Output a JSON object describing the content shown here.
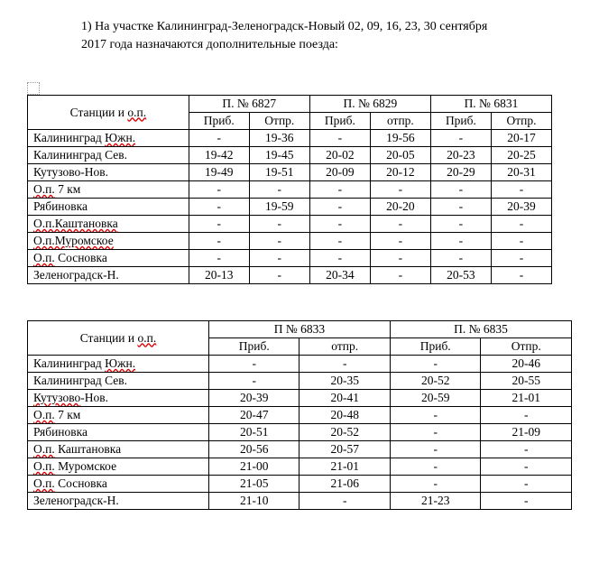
{
  "heading": {
    "number": "1)",
    "text_part1": "На участке Калининград-Зеленоградск-Новый 02, 09, 16, 23, 30 сентября",
    "text_part2": "2017 года назначаются дополнительные поезда:"
  },
  "table1": {
    "header_station": "Станции и ",
    "header_station_err": "о.п.",
    "trains": [
      {
        "label": "П. № 6827"
      },
      {
        "label": "П. № 6829"
      },
      {
        "label": "П. № 6831"
      }
    ],
    "sub": {
      "arr": "Приб.",
      "dep": "Отпр.",
      "dep_lc": "отпр."
    },
    "rows": [
      {
        "s": "Калининград ",
        "se": "Южн.",
        "c": [
          "-",
          "19-36",
          "-",
          "19-56",
          "-",
          "20-17"
        ]
      },
      {
        "s": "Калининград Сев.",
        "se": "",
        "c": [
          "19-42",
          "19-45",
          "20-02",
          "20-05",
          "20-23",
          "20-25"
        ]
      },
      {
        "s": "Кутузово-Нов.",
        "se": "",
        "c": [
          "19-49",
          "19-51",
          "20-09",
          "20-12",
          "20-29",
          "20-31"
        ]
      },
      {
        "s": "",
        "se": "О.п.",
        "st": " 7 км",
        "c": [
          "-",
          "-",
          "-",
          "-",
          "-",
          "-"
        ]
      },
      {
        "s": "Рябиновка",
        "se": "",
        "c": [
          "-",
          "19-59",
          "-",
          "20-20",
          "-",
          "20-39"
        ]
      },
      {
        "s": "",
        "se": "О.п.Каштановка",
        "c": [
          "-",
          "-",
          "-",
          "-",
          "-",
          "-"
        ]
      },
      {
        "s": "",
        "se": "О.п.Муромское",
        "c": [
          "-",
          "-",
          "-",
          "-",
          "-",
          "-"
        ]
      },
      {
        "s": "",
        "se": "О.п.",
        "st": " Сосновка",
        "c": [
          "-",
          "-",
          "-",
          "-",
          "-",
          "-"
        ]
      },
      {
        "s": "Зеленоградск-Н.",
        "se": "",
        "c": [
          "20-13",
          "-",
          "20-34",
          "-",
          "20-53",
          "-"
        ]
      }
    ]
  },
  "table2": {
    "header_station": "Станции и ",
    "header_station_err": "о.п.",
    "trains": [
      {
        "label": "П № 6833"
      },
      {
        "label": "П. № 6835"
      }
    ],
    "sub": {
      "arr": "Приб.",
      "dep": "Отпр.",
      "dep_lc": "отпр."
    },
    "rows": [
      {
        "s": "Калининград ",
        "se": "Южн.",
        "c": [
          "-",
          "-",
          "-",
          "20-46"
        ]
      },
      {
        "s": "Калининград Сев.",
        "se": "",
        "c": [
          "-",
          "20-35",
          "20-52",
          "20-55"
        ]
      },
      {
        "s": "",
        "se": "Кутузово",
        "st": "-Нов.",
        "c": [
          "20-39",
          "20-41",
          "20-59",
          "21-01"
        ]
      },
      {
        "s": "",
        "se": "О.п.",
        "st": " 7 км",
        "c": [
          "20-47",
          "20-48",
          "-",
          "-"
        ]
      },
      {
        "s": "Рябиновка",
        "se": "",
        "c": [
          "20-51",
          "20-52",
          "-",
          "21-09"
        ]
      },
      {
        "s": "",
        "se": "О.п.",
        "st": " Каштановка",
        "c": [
          "20-56",
          "20-57",
          "-",
          "-"
        ]
      },
      {
        "s": "",
        "se": "О.п.",
        "st": " Муромское",
        "c": [
          "21-00",
          "21-01",
          "-",
          "-"
        ]
      },
      {
        "s": "",
        "se": "О.п.",
        "st": " Сосновка",
        "c": [
          "21-05",
          "21-06",
          "-",
          "-"
        ]
      },
      {
        "s": "Зеленоградск-Н.",
        "se": "",
        "c": [
          "21-10",
          "-",
          "21-23",
          "-"
        ]
      }
    ]
  }
}
